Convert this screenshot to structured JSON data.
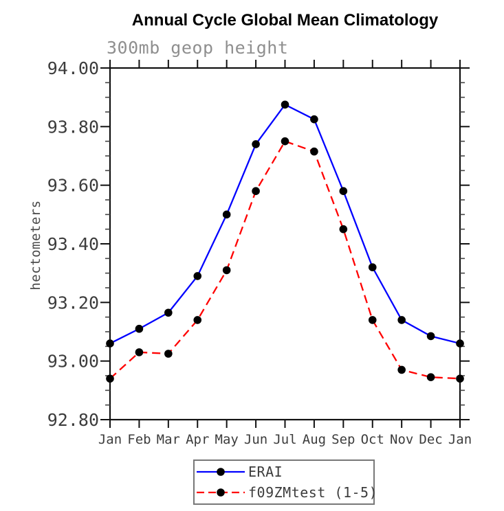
{
  "chart_data": {
    "type": "line",
    "title": "Annual Cycle Global Mean Climatology",
    "subtitle": "300mb geop height",
    "ylabel": "hectometers",
    "ylim": [
      92.8,
      94.0
    ],
    "ytick_step_major": 0.2,
    "ytick_step_minor": 0.05,
    "ytick_labels": [
      "94.00",
      "93.80",
      "93.60",
      "93.40",
      "93.20",
      "93.00",
      "92.80"
    ],
    "categories": [
      "Jan",
      "Feb",
      "Mar",
      "Apr",
      "May",
      "Jun",
      "Jul",
      "Aug",
      "Sep",
      "Oct",
      "Nov",
      "Dec",
      "Jan"
    ],
    "series": [
      {
        "name": "ERAI",
        "color": "#0000ff",
        "line_style": "solid",
        "marker": "filled-circle",
        "marker_color": "#000000",
        "values": [
          93.06,
          93.11,
          93.165,
          93.29,
          93.5,
          93.74,
          93.875,
          93.825,
          93.58,
          93.32,
          93.14,
          93.085,
          93.06
        ]
      },
      {
        "name": "f09ZMtest (1-5)",
        "color": "#ff0000",
        "line_style": "dashed",
        "marker": "filled-circle",
        "marker_color": "#000000",
        "values": [
          92.94,
          93.03,
          93.025,
          93.14,
          93.31,
          93.58,
          93.75,
          93.715,
          93.45,
          93.14,
          92.97,
          92.945,
          92.94
        ]
      }
    ],
    "legend_position": "bottom-center",
    "grid": false
  }
}
